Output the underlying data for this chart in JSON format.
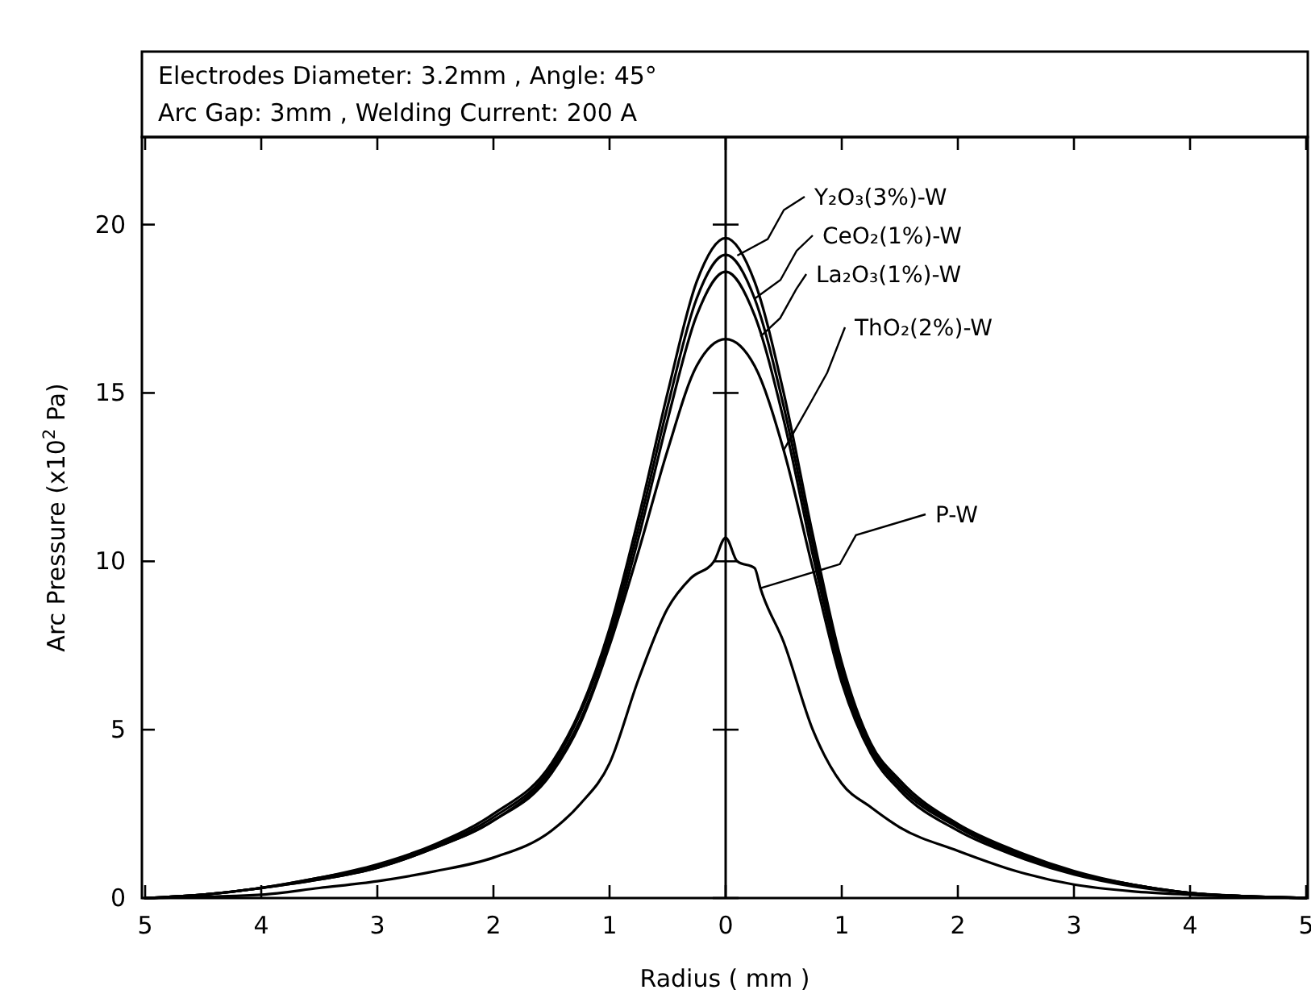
{
  "chart_data": {
    "type": "line",
    "title": "Electrodes Diameter: 3.2mm , Angle: 45°",
    "subtitle": "Arc Gap: 3mm , Welding Current: 200 A",
    "xlabel": "Radius ( mm )",
    "ylabel": "Arc  Pressure (x10$^{2}$ Pa)",
    "xlim": [
      -5,
      5
    ],
    "xticks": [
      {
        "value": -5,
        "label": "5"
      },
      {
        "value": -4,
        "label": "4"
      },
      {
        "value": -3,
        "label": "3"
      },
      {
        "value": -2,
        "label": "2"
      },
      {
        "value": -1,
        "label": "1"
      },
      0,
      1,
      2,
      3,
      4,
      5
    ],
    "ylim": [
      0,
      22.6
    ],
    "yticks": [
      0,
      5,
      10,
      15,
      20
    ],
    "grid": false,
    "legend": false,
    "marker": "none",
    "line_style": "solid",
    "ref_lines": [
      {
        "axis": "x",
        "value": 0,
        "color": "#000000"
      }
    ],
    "series": [
      {
        "name": "Y₂O₃(3%)-W",
        "color": "#000000",
        "x": [
          -5,
          -4.5,
          -4,
          -3.5,
          -3,
          -2.5,
          -2,
          -1.5,
          -1.25,
          -1,
          -0.75,
          -0.5,
          -0.25,
          0,
          0.25,
          0.5,
          0.75,
          1,
          1.25,
          1.5,
          2,
          2.5,
          3,
          3.5,
          4,
          4.5,
          5
        ],
        "values": [
          0,
          0.1,
          0.3,
          0.6,
          1.0,
          1.6,
          2.5,
          4.0,
          5.6,
          8.0,
          11.3,
          15.0,
          18.3,
          19.6,
          18.3,
          15.0,
          10.8,
          7.0,
          4.6,
          3.5,
          2.2,
          1.4,
          0.8,
          0.4,
          0.15,
          0.05,
          0
        ]
      },
      {
        "name": "CeO₂(1%)-W",
        "color": "#000000",
        "x": [
          -5,
          -4.5,
          -4,
          -3.5,
          -3,
          -2.5,
          -2,
          -1.5,
          -1.25,
          -1,
          -0.75,
          -0.5,
          -0.25,
          0,
          0.25,
          0.5,
          0.75,
          1,
          1.25,
          1.5,
          2,
          2.5,
          3,
          3.5,
          4,
          4.5,
          5
        ],
        "values": [
          0,
          0.1,
          0.3,
          0.6,
          0.95,
          1.55,
          2.4,
          3.9,
          5.5,
          7.8,
          11.0,
          14.6,
          17.8,
          19.1,
          17.8,
          14.6,
          10.5,
          6.8,
          4.5,
          3.4,
          2.15,
          1.35,
          0.75,
          0.4,
          0.15,
          0.05,
          0
        ]
      },
      {
        "name": "La₂O₃(1%)-W",
        "color": "#000000",
        "x": [
          -5,
          -4.5,
          -4,
          -3.5,
          -3,
          -2.5,
          -2,
          -1.5,
          -1.25,
          -1,
          -0.75,
          -0.5,
          -0.25,
          0,
          0.25,
          0.5,
          0.75,
          1,
          1.25,
          1.5,
          2,
          2.5,
          3,
          3.5,
          4,
          4.5,
          5
        ],
        "values": [
          0,
          0.1,
          0.3,
          0.55,
          0.9,
          1.5,
          2.3,
          3.8,
          5.3,
          7.6,
          10.7,
          14.2,
          17.3,
          18.6,
          17.3,
          14.2,
          10.2,
          6.6,
          4.4,
          3.3,
          2.1,
          1.3,
          0.75,
          0.4,
          0.15,
          0.05,
          0
        ]
      },
      {
        "name": "ThO₂(2%)-W",
        "color": "#000000",
        "x": [
          -5,
          -4.5,
          -4,
          -3.5,
          -3,
          -2.5,
          -2,
          -1.5,
          -1.25,
          -1,
          -0.75,
          -0.5,
          -0.25,
          0,
          0.25,
          0.5,
          0.75,
          1,
          1.25,
          1.5,
          2,
          2.5,
          3,
          3.5,
          4,
          4.5,
          5
        ],
        "values": [
          0,
          0.1,
          0.3,
          0.55,
          0.9,
          1.5,
          2.3,
          3.7,
          5.2,
          7.5,
          10.3,
          13.3,
          15.8,
          16.6,
          15.8,
          13.3,
          9.8,
          6.4,
          4.3,
          3.2,
          2.0,
          1.25,
          0.7,
          0.35,
          0.15,
          0.05,
          0
        ]
      },
      {
        "name": "P-W",
        "color": "#000000",
        "x": [
          -5,
          -4,
          -3.5,
          -3,
          -2.5,
          -2,
          -1.5,
          -1.25,
          -1,
          -0.75,
          -0.5,
          -0.3,
          -0.1,
          0,
          0.1,
          0.25,
          0.3,
          0.5,
          0.75,
          1,
          1.25,
          1.5,
          2,
          2.5,
          3,
          3.5,
          4,
          5
        ],
        "values": [
          0,
          0.1,
          0.3,
          0.5,
          0.8,
          1.2,
          2.0,
          2.8,
          4.0,
          6.5,
          8.6,
          9.5,
          10.0,
          10.7,
          10.0,
          9.8,
          9.2,
          7.6,
          5.0,
          3.4,
          2.7,
          2.1,
          1.4,
          0.8,
          0.4,
          0.2,
          0.1,
          0
        ]
      }
    ]
  }
}
